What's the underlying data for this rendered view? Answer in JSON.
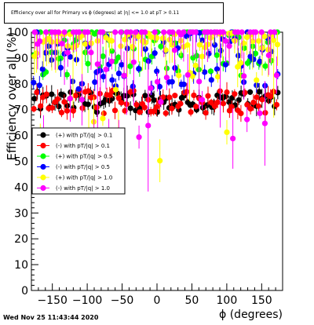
{
  "chart_data": {
    "type": "scatter",
    "title": "Efficiency over all for Primary vs ϕ (degrees) at |η| <= 1.0 at pT > 0.11",
    "xlabel": "ϕ (degrees)",
    "ylabel": "Efficiency over all (%)",
    "xlim": [
      -180,
      180
    ],
    "ylim": [
      0,
      100
    ],
    "x_ticks": [
      -150,
      -100,
      -50,
      0,
      50,
      100,
      150
    ],
    "y_ticks": [
      0,
      10,
      20,
      30,
      40,
      50,
      60,
      70,
      80,
      90,
      100
    ],
    "grid": false,
    "legend_position": "middle-left",
    "series": [
      {
        "name": "(+) with pT/|q| > 0.1",
        "color": "#000000",
        "band": [
          69,
          77
        ],
        "center": 73
      },
      {
        "name": "(-) with pT/|q| > 0.1",
        "color": "#ff0000",
        "band": [
          68,
          77
        ],
        "center": 73
      },
      {
        "name": "(+) with pT/|q| > 0.5",
        "color": "#00ff00",
        "band": [
          78,
          100
        ],
        "center": 94
      },
      {
        "name": "(-) with pT/|q| > 0.5",
        "color": "#0000ff",
        "band": [
          76,
          100
        ],
        "center": 90
      },
      {
        "name": "(+) with pT/|q| > 1.0",
        "color": "#ffff00",
        "band": [
          50,
          100
        ],
        "center": 94
      },
      {
        "name": "(-) with pT/|q| > 1.0",
        "color": "#ff00ff",
        "band": [
          50,
          100
        ],
        "center": 100
      }
    ]
  },
  "footer": {
    "timestamp": "Wed Nov 25 11:43:44 2020"
  }
}
